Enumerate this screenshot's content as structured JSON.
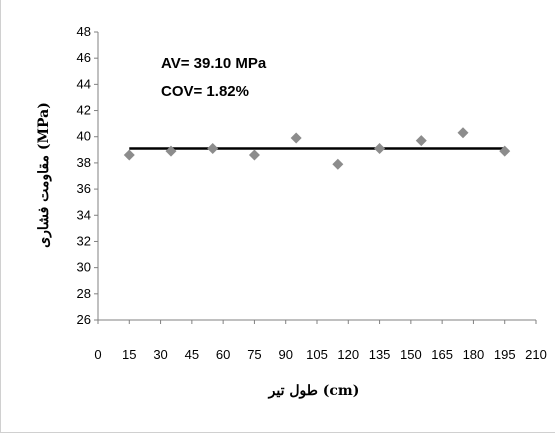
{
  "chart_data": {
    "type": "scatter",
    "xlabel": "طول تیر (cm)",
    "ylabel": "مقاومت فشاری (MPa)",
    "xlim": [
      0,
      210
    ],
    "ylim": [
      26,
      48
    ],
    "x_ticks": [
      0,
      15,
      30,
      45,
      60,
      75,
      90,
      105,
      120,
      135,
      150,
      165,
      180,
      195,
      210
    ],
    "y_ticks": [
      26,
      28,
      30,
      32,
      34,
      36,
      38,
      40,
      42,
      44,
      46,
      48
    ],
    "grid": false,
    "marker": "diamond",
    "marker_color": "#8c8c8c",
    "line_color": "#000000",
    "annotations": [
      "AV= 39.10 MPa",
      "COV= 1.82%"
    ],
    "mean_line": 39.1,
    "points": [
      {
        "x": 15,
        "y": 38.6
      },
      {
        "x": 35,
        "y": 38.9
      },
      {
        "x": 55,
        "y": 39.1
      },
      {
        "x": 75,
        "y": 38.6
      },
      {
        "x": 95,
        "y": 39.9
      },
      {
        "x": 115,
        "y": 37.9
      },
      {
        "x": 135,
        "y": 39.1
      },
      {
        "x": 155,
        "y": 39.7
      },
      {
        "x": 175,
        "y": 40.3
      },
      {
        "x": 195,
        "y": 38.9
      }
    ]
  }
}
